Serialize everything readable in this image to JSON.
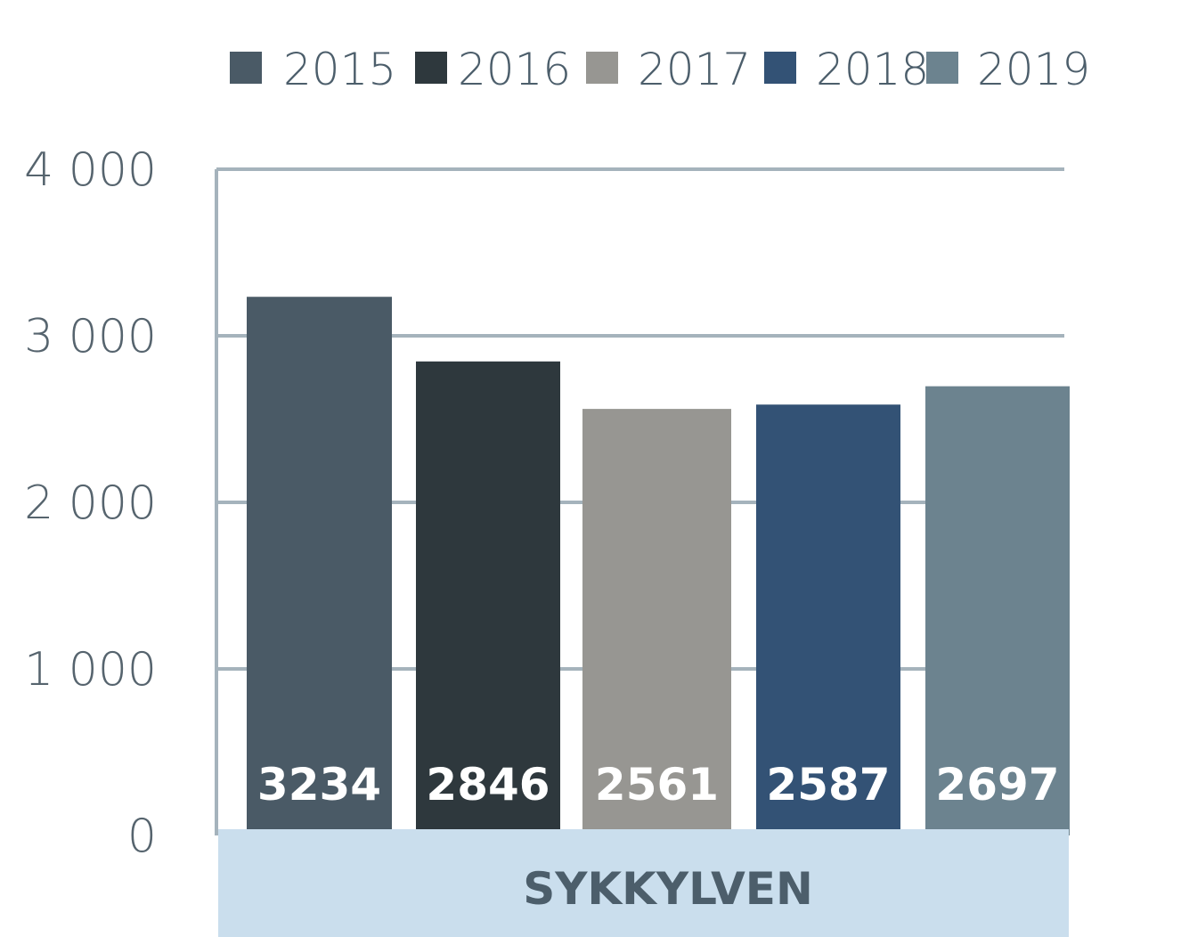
{
  "chart_data": {
    "type": "bar",
    "categories": [
      "SYKKYLVEN"
    ],
    "series": [
      {
        "name": "2015",
        "values": [
          3234
        ],
        "color": "#4a5a66"
      },
      {
        "name": "2016",
        "values": [
          2846
        ],
        "color": "#2e383d"
      },
      {
        "name": "2017",
        "values": [
          2561
        ],
        "color": "#979692"
      },
      {
        "name": "2018",
        "values": [
          2587
        ],
        "color": "#335275"
      },
      {
        "name": "2019",
        "values": [
          2697
        ],
        "color": "#6c838f"
      }
    ],
    "data_labels": [
      "3234",
      "2846",
      "2561",
      "2587",
      "2697"
    ],
    "y_ticks": [
      0,
      1000,
      2000,
      3000,
      4000
    ],
    "y_tick_labels": [
      "0",
      "1 000",
      "2 000",
      "3 000",
      "4 000"
    ],
    "ylim": [
      0,
      4000
    ],
    "grid": true,
    "legend_position": "top",
    "category_band_color": "#cadeed",
    "gridline_color": "#a5b3bc"
  }
}
